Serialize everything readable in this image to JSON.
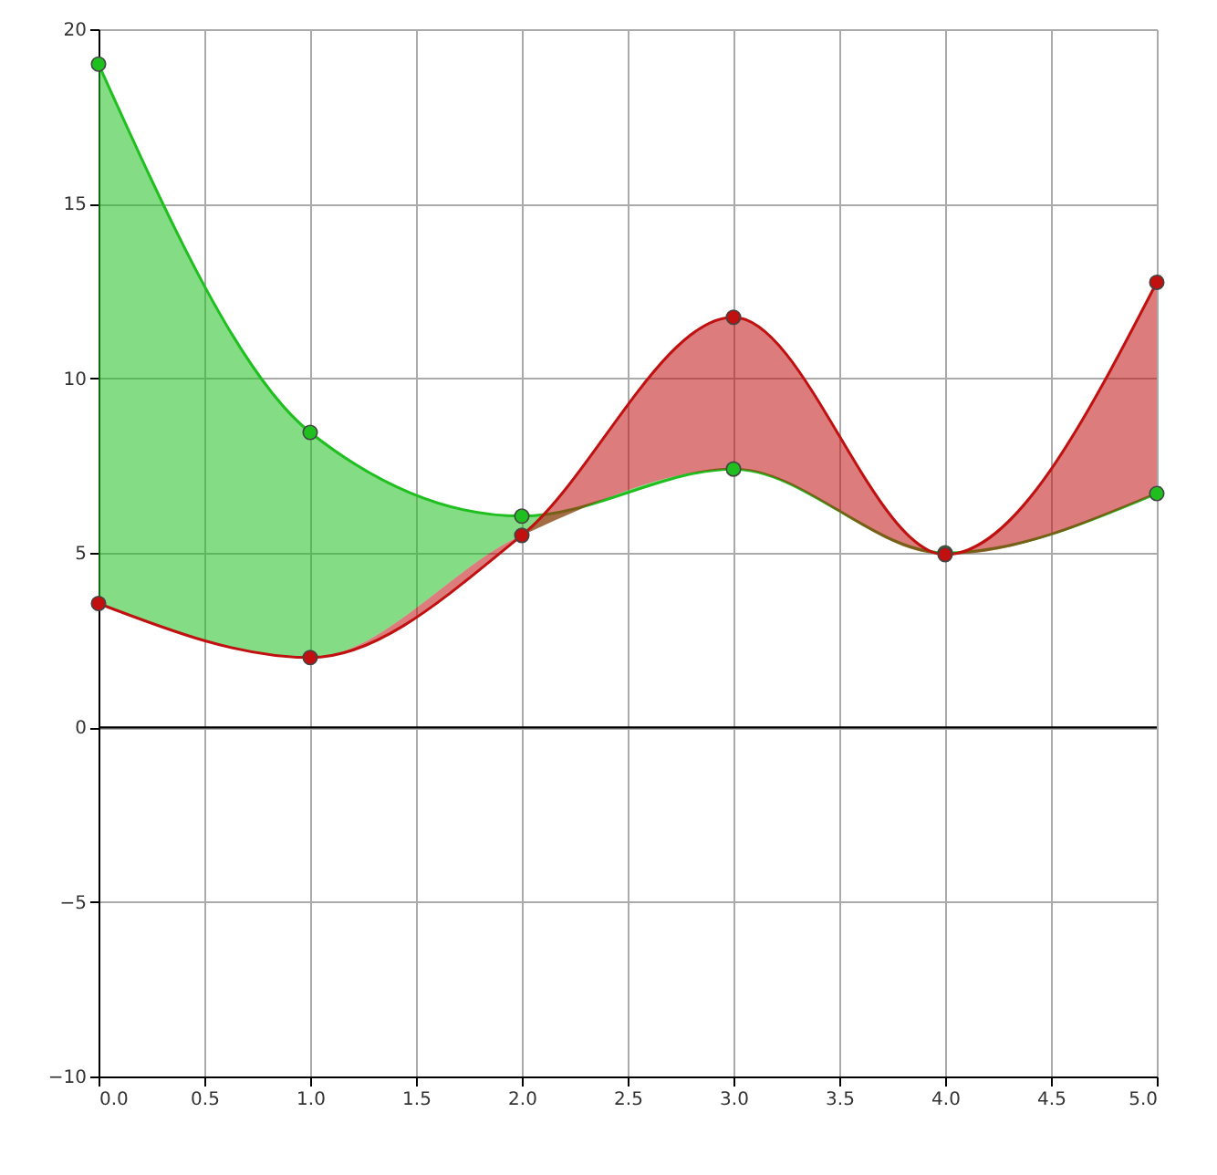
{
  "chart_data": {
    "type": "line",
    "x": [
      0,
      1,
      2,
      3,
      4,
      5
    ],
    "series": [
      {
        "color": "#1fbf1f",
        "values": [
          19.0,
          8.45,
          6.05,
          7.4,
          5.0,
          6.7
        ],
        "lower": [
          3.55,
          2.0,
          5.5,
          7.4,
          4.95,
          6.7
        ],
        "upper": [
          19.0,
          8.45,
          6.05,
          7.4,
          5.0,
          6.7
        ]
      },
      {
        "color": "#c01010",
        "values": [
          3.55,
          2.0,
          5.5,
          11.75,
          4.95,
          12.75
        ],
        "lower": [
          3.55,
          2.0,
          5.5,
          7.4,
          4.95,
          6.7
        ],
        "upper": [
          3.55,
          2.0,
          5.5,
          11.75,
          4.95,
          12.75
        ]
      }
    ],
    "xlim": [
      0,
      5
    ],
    "xticks": [
      {
        "value": 0,
        "label": "0.0"
      },
      0.5,
      {
        "value": 1,
        "label": "1.0"
      },
      1.5,
      {
        "value": 2,
        "label": "2.0"
      },
      2.5,
      {
        "value": 3,
        "label": "3.0"
      },
      3.5,
      {
        "value": 4,
        "label": "4.0"
      },
      4.5,
      {
        "value": 5,
        "label": "5.0"
      }
    ],
    "ylim": [
      -10,
      20
    ],
    "yticks": [
      -10,
      -5,
      0,
      5,
      10,
      15,
      20
    ],
    "ref_lines": [
      {
        "axis": "y",
        "value": 0,
        "color": "#000000"
      }
    ],
    "grid": true,
    "marker": "circle",
    "line_style": "solid"
  }
}
